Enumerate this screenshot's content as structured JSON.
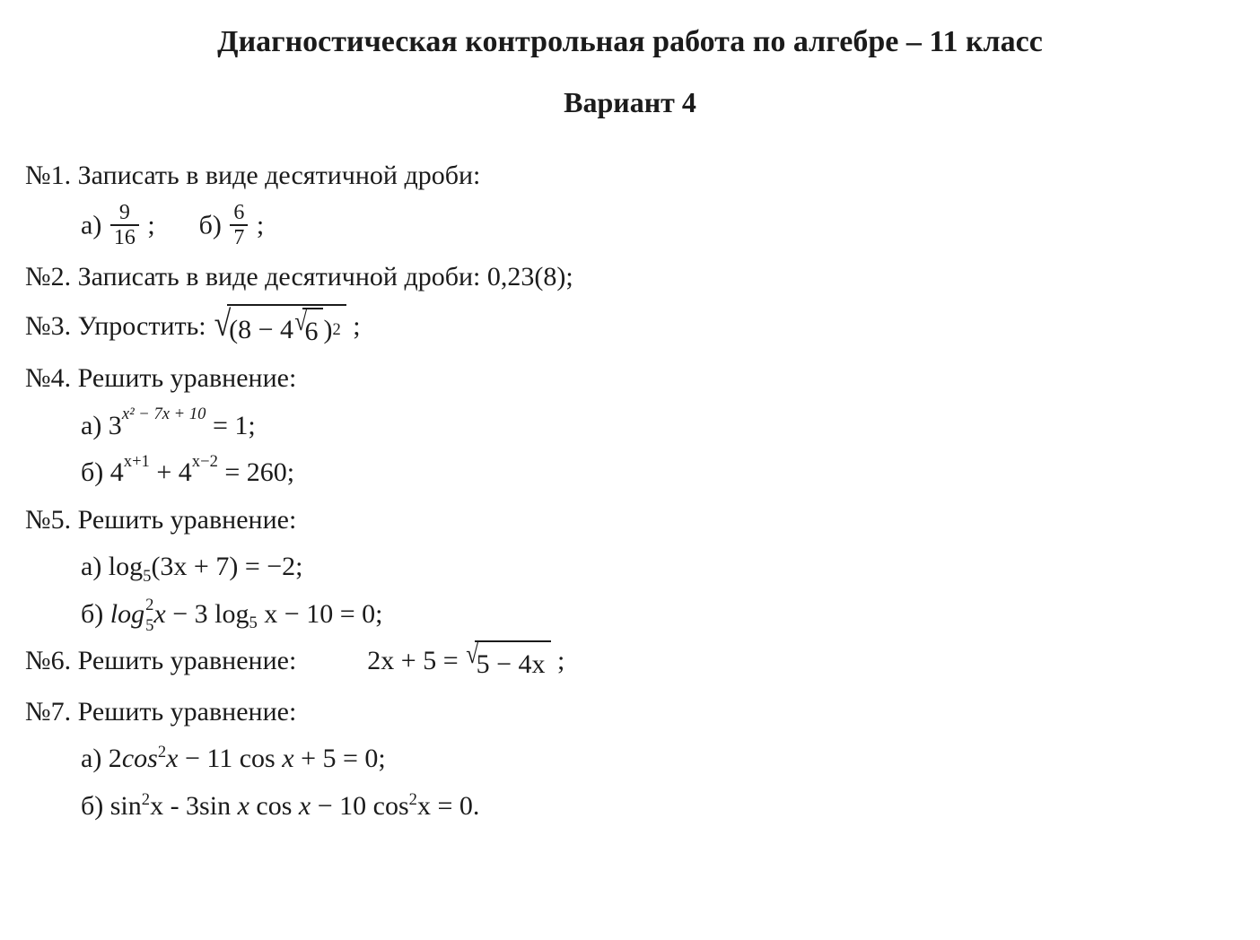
{
  "doc": {
    "title": "Диагностическая контрольная работа по алгебре – 11 класс",
    "subtitle": "Вариант 4",
    "text_color": "#1b1b1b",
    "background_color": "#ffffff",
    "title_fontsize": 34,
    "body_fontsize": 30
  },
  "p1": {
    "label": "№1. Записать в виде десятичной дроби:",
    "a_prefix": "а) ",
    "a_num": "9",
    "a_den": "16",
    "a_tail": " ;",
    "b_prefix": "б) ",
    "b_num": "6",
    "b_den": "7",
    "b_tail": " ;"
  },
  "p2": {
    "text": "№2. Записать в виде десятичной дроби: 0,23(8);"
  },
  "p3": {
    "prefix": "№3. Упростить: ",
    "inner_left": "(8 − 4",
    "inner_sqrt": "6",
    "inner_right": " )",
    "power": "2",
    "tail": " ;"
  },
  "p4": {
    "label": "№4. Решить уравнение:",
    "a_prefix": "а) 3",
    "a_exp": "x² − 7x + 10",
    "a_tail": " = 1;",
    "b_prefix": "б) 4",
    "b_exp1": "x+1",
    "b_mid": " +  4",
    "b_exp2": "x−2",
    "b_tail": " = 260;"
  },
  "p5": {
    "label": "№5. Решить уравнение:",
    "a": "а) log",
    "a_sub": "5",
    "a_tail": "(3x + 7) =  −2;",
    "b_prefix": "б) ",
    "b_log": "log",
    "b_sup": "2",
    "b_sub": "5",
    "b_x": "x",
    "b_mid": " −  3 log",
    "b_sub2": "5",
    "b_tail": " x −  10 = 0;"
  },
  "p6": {
    "prefix": "№6. Решить уравнение:",
    "lhs": "2x + 5 = ",
    "radicand": "5 − 4x",
    "tail": " ;"
  },
  "p7": {
    "label": "№7. Решить уравнение:",
    "a_prefix": "а)  2",
    "a_cos": "cos",
    "a_cos_sup": "2",
    "a_mid": "x − 11 cos x +  5 = 0;",
    "a_x": "x",
    "b_prefix": "б) sin",
    "b_sup1": "2",
    "b_mid1": "x -  3sin ",
    "b_x1": "x",
    "b_mid2": " cos ",
    "b_x2": "x",
    "b_mid3": " −  10 cos",
    "b_sup2": "2",
    "b_tail": "x = 0."
  }
}
